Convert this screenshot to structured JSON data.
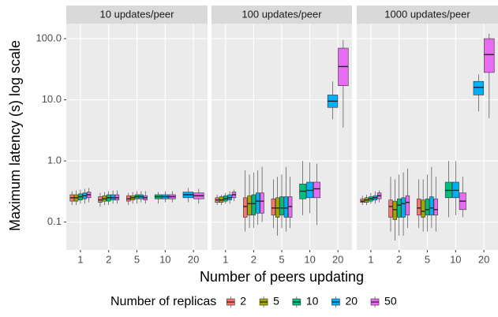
{
  "chart_data": [
    {
      "type": "box",
      "title": "10 updates/peer",
      "log_y": true,
      "grid": true,
      "ylim": [
        0.035,
        176
      ],
      "yticks": [
        {
          "value": 0.1,
          "label": "0.1"
        },
        {
          "value": 1,
          "label": "1.0"
        },
        {
          "value": 10,
          "label": "10.0"
        },
        {
          "value": 100,
          "label": "100.0"
        }
      ],
      "categories": [
        "1",
        "2",
        "5",
        "10",
        "20"
      ],
      "series": [
        {
          "name": "2",
          "color": "#F8766D",
          "low": [
            0.19,
            0.18,
            0.19,
            null,
            null
          ],
          "q1": [
            0.22,
            0.21,
            0.22,
            null,
            null
          ],
          "median": [
            0.25,
            0.23,
            0.24,
            null,
            null
          ],
          "q3": [
            0.28,
            0.26,
            0.27,
            null,
            null
          ],
          "high": [
            0.32,
            0.3,
            0.3,
            null,
            null
          ]
        },
        {
          "name": "5",
          "color": "#A3A500",
          "low": [
            0.19,
            0.19,
            0.2,
            null,
            null
          ],
          "q1": [
            0.22,
            0.22,
            0.23,
            null,
            null
          ],
          "median": [
            0.25,
            0.24,
            0.25,
            null,
            null
          ],
          "q3": [
            0.28,
            0.27,
            0.27,
            null,
            null
          ],
          "high": [
            0.33,
            0.31,
            0.31,
            null,
            null
          ]
        },
        {
          "name": "10",
          "color": "#00BF7D",
          "low": [
            0.2,
            0.19,
            0.2,
            0.2,
            null
          ],
          "q1": [
            0.23,
            0.22,
            0.24,
            0.24,
            null
          ],
          "median": [
            0.26,
            0.25,
            0.26,
            0.26,
            null
          ],
          "q3": [
            0.29,
            0.28,
            0.28,
            0.28,
            null
          ],
          "high": [
            0.34,
            0.32,
            0.32,
            0.31,
            null
          ]
        },
        {
          "name": "20",
          "color": "#00B0F6",
          "low": [
            0.2,
            0.2,
            0.21,
            0.21,
            0.21
          ],
          "q1": [
            0.24,
            0.23,
            0.24,
            0.24,
            0.25
          ],
          "median": [
            0.27,
            0.25,
            0.26,
            0.26,
            0.28
          ],
          "q3": [
            0.3,
            0.28,
            0.28,
            0.28,
            0.31
          ],
          "high": [
            0.35,
            0.33,
            0.32,
            0.32,
            0.36
          ]
        },
        {
          "name": "50",
          "color": "#E76BF3",
          "low": [
            0.21,
            0.2,
            0.2,
            0.21,
            0.2
          ],
          "q1": [
            0.25,
            0.23,
            0.23,
            0.24,
            0.24
          ],
          "median": [
            0.28,
            0.25,
            0.25,
            0.26,
            0.27
          ],
          "q3": [
            0.31,
            0.28,
            0.27,
            0.28,
            0.3
          ],
          "high": [
            0.36,
            0.33,
            0.32,
            0.32,
            0.35
          ]
        }
      ]
    },
    {
      "type": "box",
      "title": "100 updates/peer",
      "categories": [
        "1",
        "2",
        "5",
        "10",
        "20"
      ],
      "series": [
        {
          "name": "2",
          "color": "#F8766D",
          "low": [
            0.19,
            0.07,
            0.08,
            null,
            null
          ],
          "q1": [
            0.21,
            0.12,
            0.13,
            null,
            null
          ],
          "median": [
            0.23,
            0.18,
            0.17,
            null,
            null
          ],
          "q3": [
            0.25,
            0.25,
            0.24,
            null,
            null
          ],
          "high": [
            0.28,
            0.7,
            0.5,
            null,
            null
          ]
        },
        {
          "name": "5",
          "color": "#A3A500",
          "low": [
            0.19,
            0.08,
            0.06,
            null,
            null
          ],
          "q1": [
            0.21,
            0.13,
            0.12,
            null,
            null
          ],
          "median": [
            0.23,
            0.2,
            0.17,
            null,
            null
          ],
          "q3": [
            0.26,
            0.27,
            0.25,
            null,
            null
          ],
          "high": [
            0.28,
            0.6,
            0.55,
            null,
            null
          ]
        },
        {
          "name": "10",
          "color": "#00BF7D",
          "low": [
            0.2,
            0.08,
            0.08,
            0.13,
            null
          ],
          "q1": [
            0.22,
            0.13,
            0.13,
            0.24,
            null
          ],
          "median": [
            0.24,
            0.2,
            0.17,
            0.32,
            null
          ],
          "q3": [
            0.27,
            0.28,
            0.26,
            0.42,
            null
          ],
          "high": [
            0.3,
            0.65,
            0.6,
            1.0,
            null
          ]
        },
        {
          "name": "20",
          "color": "#00B0F6",
          "low": [
            0.2,
            0.09,
            0.07,
            0.14,
            4.8
          ],
          "q1": [
            0.23,
            0.14,
            0.12,
            0.25,
            7.5
          ],
          "median": [
            0.25,
            0.22,
            0.17,
            0.33,
            9.5
          ],
          "q3": [
            0.28,
            0.3,
            0.26,
            0.45,
            12
          ],
          "high": [
            0.32,
            0.7,
            0.8,
            0.95,
            20
          ]
        },
        {
          "name": "50",
          "color": "#E76BF3",
          "low": [
            0.22,
            0.1,
            0.08,
            0.09,
            3.5
          ],
          "q1": [
            0.25,
            0.14,
            0.12,
            0.25,
            17
          ],
          "median": [
            0.28,
            0.22,
            0.18,
            0.35,
            35
          ],
          "q3": [
            0.31,
            0.3,
            0.26,
            0.45,
            70
          ],
          "high": [
            0.34,
            0.8,
            0.55,
            0.9,
            95
          ]
        }
      ]
    },
    {
      "type": "box",
      "title": "1000 updates/peer",
      "categories": [
        "1",
        "2",
        "5",
        "10",
        "20"
      ],
      "series": [
        {
          "name": "2",
          "color": "#F8766D",
          "low": [
            0.19,
            0.07,
            0.08,
            null,
            null
          ],
          "q1": [
            0.21,
            0.12,
            0.13,
            null,
            null
          ],
          "median": [
            0.22,
            0.18,
            0.17,
            null,
            null
          ],
          "q3": [
            0.24,
            0.23,
            0.24,
            null,
            null
          ],
          "high": [
            0.27,
            0.55,
            0.5,
            null,
            null
          ]
        },
        {
          "name": "5",
          "color": "#A3A500",
          "low": [
            0.19,
            0.05,
            0.07,
            null,
            null
          ],
          "q1": [
            0.21,
            0.11,
            0.12,
            null,
            null
          ],
          "median": [
            0.23,
            0.16,
            0.15,
            null,
            null
          ],
          "q3": [
            0.25,
            0.22,
            0.23,
            null,
            null
          ],
          "high": [
            0.28,
            0.5,
            0.5,
            null,
            null
          ]
        },
        {
          "name": "10",
          "color": "#00BF7D",
          "low": [
            0.2,
            0.06,
            0.07,
            0.12,
            null
          ],
          "q1": [
            0.22,
            0.12,
            0.13,
            0.25,
            null
          ],
          "median": [
            0.24,
            0.19,
            0.16,
            0.33,
            null
          ],
          "q3": [
            0.26,
            0.24,
            0.24,
            0.45,
            null
          ],
          "high": [
            0.3,
            0.6,
            0.6,
            1.0,
            null
          ]
        },
        {
          "name": "20",
          "color": "#00B0F6",
          "low": [
            0.2,
            0.06,
            0.08,
            0.13,
            6.5
          ],
          "q1": [
            0.23,
            0.12,
            0.13,
            0.25,
            12
          ],
          "median": [
            0.25,
            0.2,
            0.17,
            0.33,
            16
          ],
          "q3": [
            0.27,
            0.25,
            0.26,
            0.45,
            20
          ],
          "high": [
            0.32,
            0.65,
            0.8,
            1.0,
            26
          ]
        },
        {
          "name": "50",
          "color": "#E76BF3",
          "low": [
            0.21,
            0.08,
            0.07,
            0.12,
            5
          ],
          "q1": [
            0.24,
            0.13,
            0.13,
            0.16,
            28
          ],
          "median": [
            0.27,
            0.21,
            0.16,
            0.22,
            55
          ],
          "q3": [
            0.3,
            0.27,
            0.24,
            0.3,
            100
          ],
          "high": [
            0.33,
            0.75,
            0.55,
            0.55,
            120
          ]
        }
      ]
    }
  ],
  "xlabel": "Number of peers updating",
  "ylabel": "Maximum latency (s) log scale",
  "legend_title": "Number of replicas"
}
